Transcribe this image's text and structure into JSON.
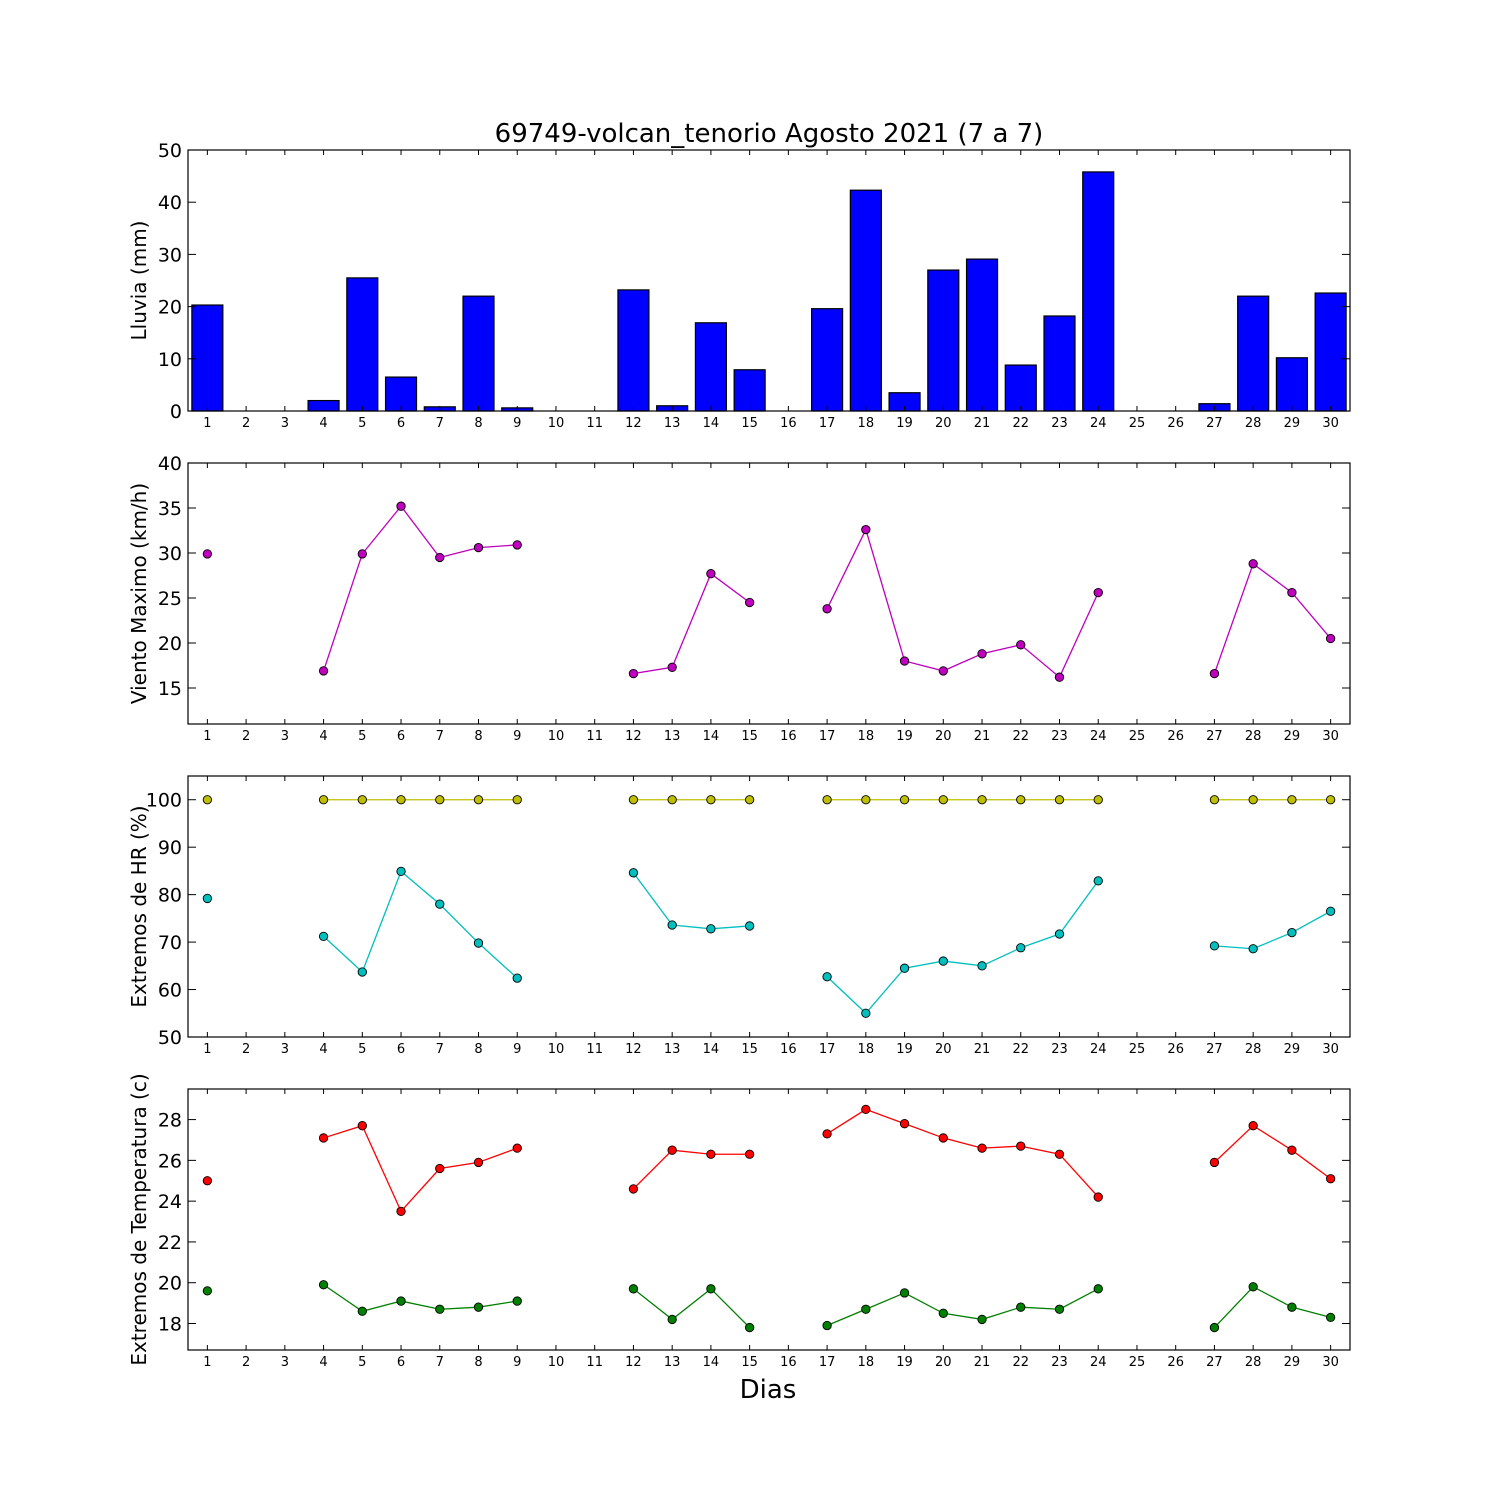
{
  "title": "69749-volcan_tenorio Agosto 2021  (7 a 7)",
  "xlabel": "Dias",
  "days": [
    1,
    2,
    3,
    4,
    5,
    6,
    7,
    8,
    9,
    10,
    11,
    12,
    13,
    14,
    15,
    16,
    17,
    18,
    19,
    20,
    21,
    22,
    23,
    24,
    25,
    26,
    27,
    28,
    29,
    30
  ],
  "chart_data": [
    {
      "type": "bar",
      "ylabel": "Lluvia (mm)",
      "xlim": [
        0.5,
        30.5
      ],
      "ylim": [
        0,
        50
      ],
      "yticks": [
        0,
        10,
        20,
        30,
        40,
        50
      ],
      "grid": false,
      "series": [
        {
          "color": "#0000ff",
          "values": [
            20.3,
            0,
            0,
            2.0,
            25.5,
            6.5,
            0.8,
            22.0,
            0.6,
            0,
            0,
            23.2,
            1.0,
            16.9,
            7.9,
            0,
            19.6,
            42.3,
            3.5,
            27.0,
            29.1,
            8.8,
            18.2,
            45.8,
            0,
            0,
            1.4,
            22.0,
            10.2,
            22.6
          ]
        }
      ]
    },
    {
      "type": "line",
      "ylabel": "Viento Maximo (km/h)",
      "xlim": [
        0.5,
        30.5
      ],
      "ylim": [
        11,
        40
      ],
      "yticks": [
        15,
        20,
        25,
        30,
        35,
        40
      ],
      "grid": false,
      "series": [
        {
          "color": "#bf00bf",
          "values": [
            29.9,
            null,
            null,
            16.9,
            29.9,
            35.2,
            29.5,
            30.6,
            30.9,
            null,
            null,
            16.6,
            17.3,
            27.7,
            24.5,
            null,
            23.8,
            32.6,
            18.0,
            16.9,
            18.8,
            19.8,
            16.2,
            25.6,
            null,
            null,
            16.6,
            28.8,
            25.6,
            20.5
          ]
        }
      ]
    },
    {
      "type": "line",
      "ylabel": "Extremos de HR (%)",
      "xlim": [
        0.5,
        30.5
      ],
      "ylim": [
        50,
        105
      ],
      "yticks": [
        50,
        60,
        70,
        80,
        90,
        100
      ],
      "grid": false,
      "series": [
        {
          "color": "#bfbf00",
          "values": [
            100,
            null,
            null,
            100,
            100,
            100,
            100,
            100,
            100,
            null,
            null,
            100,
            100,
            100,
            100,
            null,
            100,
            100,
            100,
            100,
            100,
            100,
            100,
            100,
            null,
            null,
            100,
            100,
            100,
            100
          ]
        },
        {
          "color": "#00bfbf",
          "values": [
            79.2,
            null,
            null,
            71.2,
            63.7,
            84.9,
            78.0,
            69.8,
            62.4,
            null,
            null,
            84.6,
            73.6,
            72.8,
            73.4,
            null,
            62.7,
            55.0,
            64.5,
            66.0,
            65.0,
            68.8,
            71.7,
            82.9,
            null,
            null,
            69.2,
            68.6,
            72.0,
            76.5
          ]
        }
      ]
    },
    {
      "type": "line",
      "ylabel": "Extremos de Temperatura (c)",
      "xlim": [
        0.5,
        30.5
      ],
      "ylim": [
        16.7,
        29.5
      ],
      "yticks": [
        18,
        20,
        22,
        24,
        26,
        28
      ],
      "grid": false,
      "series": [
        {
          "color": "#ff0000",
          "values": [
            25.0,
            null,
            null,
            27.1,
            27.7,
            23.5,
            25.6,
            25.9,
            26.6,
            null,
            null,
            24.6,
            26.5,
            26.3,
            26.3,
            null,
            27.3,
            28.5,
            27.8,
            27.1,
            26.6,
            26.7,
            26.3,
            24.2,
            null,
            null,
            25.9,
            27.7,
            26.5,
            25.1
          ]
        },
        {
          "color": "#008000",
          "values": [
            19.6,
            null,
            null,
            19.9,
            18.6,
            19.1,
            18.7,
            18.8,
            19.1,
            null,
            null,
            19.7,
            18.2,
            19.7,
            17.8,
            null,
            17.9,
            18.7,
            19.5,
            18.5,
            18.2,
            18.8,
            18.7,
            19.7,
            null,
            null,
            17.8,
            19.8,
            18.8,
            18.3
          ]
        }
      ]
    }
  ]
}
